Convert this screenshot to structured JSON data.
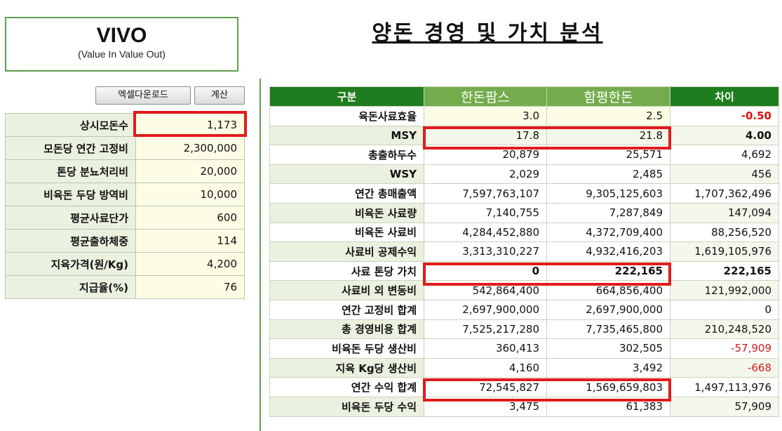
{
  "logo": {
    "title": "VIVO",
    "subtitle": "(Value In Value Out)"
  },
  "page_title": "양돈 경영 및 가치 분석",
  "buttons": {
    "excel_download": "엑셀다운로드",
    "calculate": "계산"
  },
  "inputs": [
    {
      "label": "상시모돈수",
      "value": "1,173"
    },
    {
      "label": "모돈당 연간 고정비",
      "value": "2,300,000"
    },
    {
      "label": "톤당 분뇨처리비",
      "value": "20,000"
    },
    {
      "label": "비육돈 두당 방역비",
      "value": "10,000"
    },
    {
      "label": "평균사료단가",
      "value": "600"
    },
    {
      "label": "평균출하체중",
      "value": "114"
    },
    {
      "label": "지육가격(원/Kg)",
      "value": "4,200"
    },
    {
      "label": "지급율(%)",
      "value": "76"
    }
  ],
  "analysis": {
    "headers": {
      "category": "구분",
      "farm_a": "한돈팜스",
      "farm_b": "함평한돈",
      "diff": "차이"
    },
    "rows": [
      {
        "label": "육돈사료효율",
        "a": "3.0",
        "b": "2.5",
        "diff": "-0.50"
      },
      {
        "label": "MSY",
        "a": "17.8",
        "b": "21.8",
        "diff": "4.00"
      },
      {
        "label": "총출하두수",
        "a": "20,879",
        "b": "25,571",
        "diff": "4,692"
      },
      {
        "label": "WSY",
        "a": "2,029",
        "b": "2,485",
        "diff": "456"
      },
      {
        "label": "연간 총매출액",
        "a": "7,597,763,107",
        "b": "9,305,125,603",
        "diff": "1,707,362,496"
      },
      {
        "label": "비육돈 사료량",
        "a": "7,140,755",
        "b": "7,287,849",
        "diff": "147,094"
      },
      {
        "label": "비육돈 사료비",
        "a": "4,284,452,880",
        "b": "4,372,709,400",
        "diff": "88,256,520"
      },
      {
        "label": "사료비 공제수익",
        "a": "3,313,310,227",
        "b": "4,932,416,203",
        "diff": "1,619,105,976"
      },
      {
        "label": "사료 톤당 가치",
        "a": "0",
        "b": "222,165",
        "diff": "222,165"
      },
      {
        "label": "사료비 외 변동비",
        "a": "542,864,400",
        "b": "664,856,400",
        "diff": "121,992,000"
      },
      {
        "label": "연간 고정비 합계",
        "a": "2,697,900,000",
        "b": "2,697,900,000",
        "diff": "0"
      },
      {
        "label": "총 경영비용 합계",
        "a": "7,525,217,280",
        "b": "7,735,465,800",
        "diff": "210,248,520"
      },
      {
        "label": "비육돈 두당 생산비",
        "a": "360,413",
        "b": "302,505",
        "diff": "-57,909"
      },
      {
        "label": "지육 Kg당 생산비",
        "a": "4,160",
        "b": "3,492",
        "diff": "-668"
      },
      {
        "label": "연간 수익 합계",
        "a": "72,545,827",
        "b": "1,569,659,803",
        "diff": "1,497,113,976"
      },
      {
        "label": "비육돈 두당 수익",
        "a": "3,475",
        "b": "61,383",
        "diff": "57,909"
      }
    ]
  },
  "colors": {
    "header_dark_green": "#1e7d1e",
    "header_light_green": "#74ac4d",
    "label_bg": "#ebf1df",
    "input_bg": "#fdfde6",
    "highlight_red": "#e11c1c",
    "negative_red": "#d11a1a"
  }
}
